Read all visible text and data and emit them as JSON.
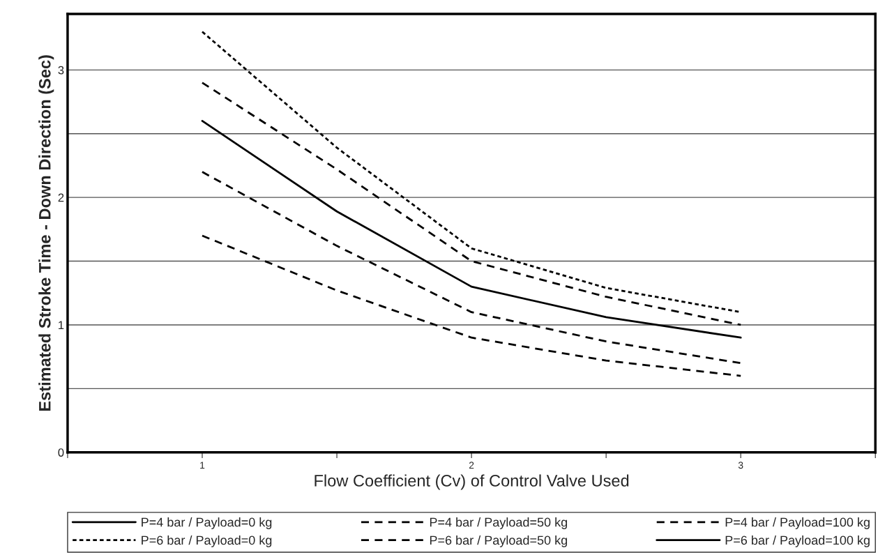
{
  "chart_data": {
    "type": "line",
    "xlabel": "Flow Coefficient (Cv) of Control Valve Used",
    "ylabel": "Estimated Stroke Time - Down Direction (Sec)",
    "x": [
      1,
      1.5,
      2,
      2.5,
      3
    ],
    "series": [
      {
        "name": "P=4 bar / Payload=0 kg",
        "color": "#000000",
        "line_style": "solid",
        "values": [
          null,
          null,
          null,
          null,
          null
        ]
      },
      {
        "name": "P=4 bar / Payload=50 kg",
        "color": "#000000",
        "line_style": "dashed",
        "values": [
          2.2,
          1.62,
          1.1,
          0.87,
          0.7
        ]
      },
      {
        "name": "P=4 bar / Payload=100 kg",
        "color": "#000000",
        "line_style": "dashed",
        "values": [
          1.7,
          1.27,
          0.9,
          0.72,
          0.6
        ]
      },
      {
        "name": "P=6 bar / Payload=0 kg",
        "color": "#000000",
        "line_style": "dotted",
        "values": [
          3.3,
          2.39,
          1.6,
          1.29,
          1.1
        ]
      },
      {
        "name": "P=6 bar / Payload=50 kg",
        "color": "#000000",
        "line_style": "dashed",
        "values": [
          2.9,
          2.22,
          1.5,
          1.22,
          1.0
        ]
      },
      {
        "name": "P=6 bar / Payload=100 kg",
        "color": "#000000",
        "line_style": "solid",
        "values": [
          2.6,
          1.89,
          1.3,
          1.06,
          0.9
        ]
      }
    ],
    "xlim": [
      0.5,
      3.5
    ],
    "xticks": [
      {
        "value": 0.5,
        "label": null
      },
      1,
      {
        "value": 1.5,
        "label": null
      },
      2,
      {
        "value": 2.5,
        "label": null
      },
      3,
      {
        "value": 3.5,
        "label": null
      }
    ],
    "ylim": [
      0,
      3.44
    ],
    "yticks": [
      0,
      {
        "value": 0.5,
        "label": null
      },
      1,
      {
        "value": 1.5,
        "label": null
      },
      2,
      {
        "value": 2.5,
        "label": null
      },
      3
    ],
    "grid": "y",
    "legend": "bottom",
    "marker": "none"
  }
}
